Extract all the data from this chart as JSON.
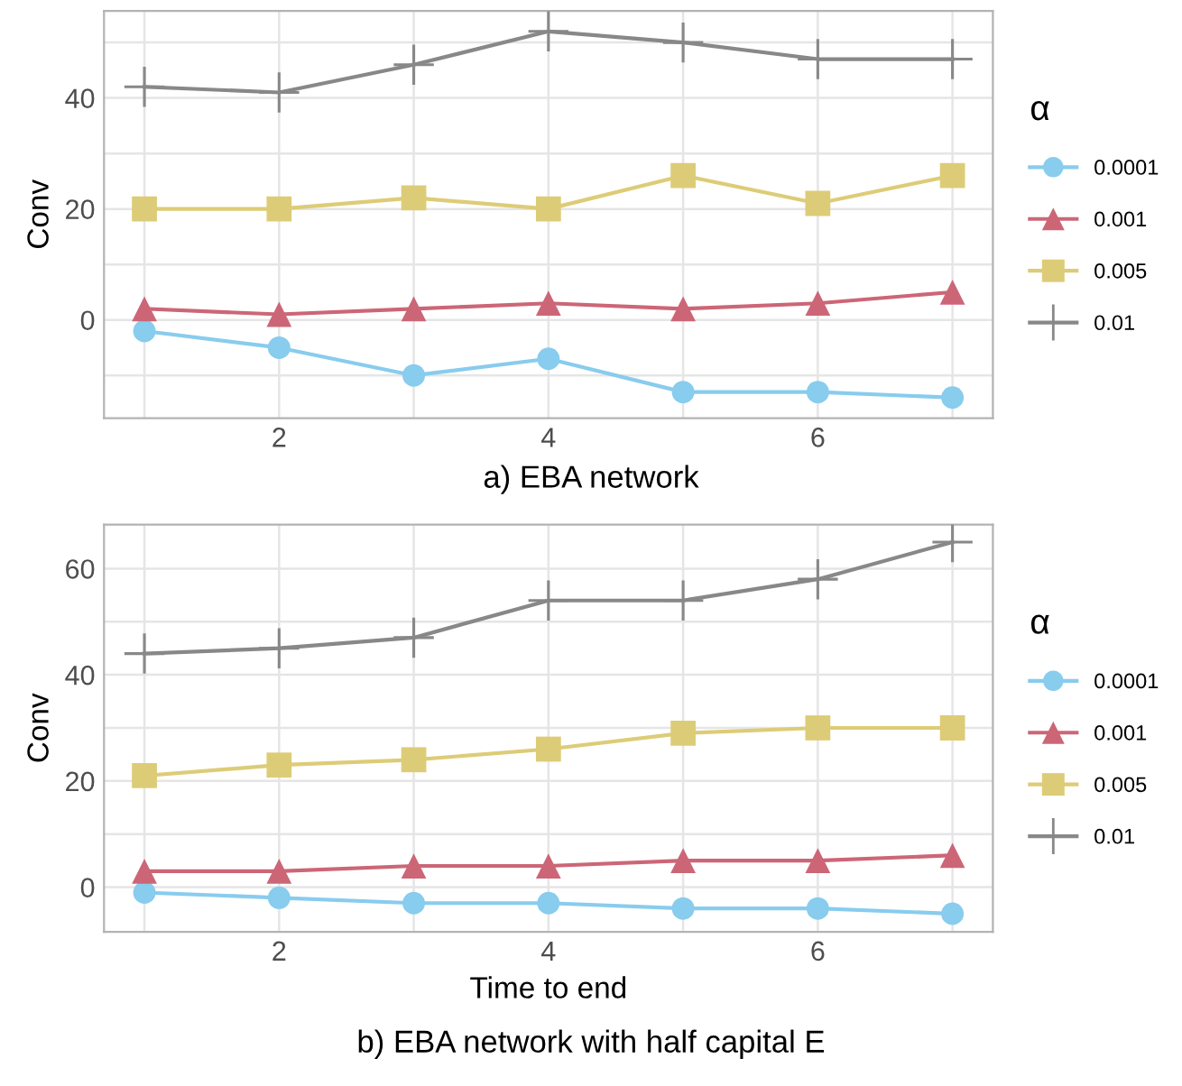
{
  "chart_data": [
    {
      "type": "line",
      "title": "a) EBA network",
      "ylabel": "Conv",
      "legend_title": "α",
      "legend": "right",
      "grid": true,
      "x": [
        1,
        2,
        3,
        4,
        5,
        6,
        7
      ],
      "xlim": [
        0.7,
        7.3
      ],
      "ylim": [
        -17.7,
        55.7
      ],
      "xticks": [
        {
          "value": 1,
          "label": null
        },
        2,
        {
          "value": 3,
          "label": null
        },
        4,
        {
          "value": 5,
          "label": null
        },
        6,
        {
          "value": 7,
          "label": null
        }
      ],
      "yticks": [
        {
          "value": -10,
          "label": null
        },
        0,
        {
          "value": 10,
          "label": null
        },
        20,
        {
          "value": 30,
          "label": null
        },
        40,
        {
          "value": 50,
          "label": null
        }
      ],
      "series": [
        {
          "name": "0.0001",
          "color": "#88ccee",
          "marker": "circle",
          "values": [
            -2,
            -5,
            -10,
            -7,
            -13,
            -13,
            -14
          ]
        },
        {
          "name": "0.001",
          "color": "#cc6677",
          "marker": "triangle",
          "values": [
            2,
            1,
            2,
            3,
            2,
            3,
            5
          ]
        },
        {
          "name": "0.005",
          "color": "#ddcc77",
          "marker": "square",
          "values": [
            20,
            20,
            22,
            20,
            26,
            21,
            26
          ]
        },
        {
          "name": "0.01",
          "color": "#888888",
          "marker": "cross",
          "values": [
            42,
            41,
            46,
            52,
            50,
            47,
            47
          ]
        }
      ]
    },
    {
      "type": "line",
      "title": "b) EBA network with half capital E",
      "xlabel": "Time to end",
      "ylabel": "Conv",
      "legend_title": "α",
      "legend": "right",
      "grid": true,
      "x": [
        1,
        2,
        3,
        4,
        5,
        6,
        7
      ],
      "xlim": [
        0.7,
        7.3
      ],
      "ylim": [
        -8.4,
        68.3
      ],
      "xticks": [
        {
          "value": 1,
          "label": null
        },
        2,
        {
          "value": 3,
          "label": null
        },
        4,
        {
          "value": 5,
          "label": null
        },
        6,
        {
          "value": 7,
          "label": null
        }
      ],
      "yticks": [
        0,
        {
          "value": 10,
          "label": null
        },
        20,
        {
          "value": 30,
          "label": null
        },
        40,
        {
          "value": 50,
          "label": null
        },
        60
      ],
      "series": [
        {
          "name": "0.0001",
          "color": "#88ccee",
          "marker": "circle",
          "values": [
            -1,
            -2,
            -3,
            -3,
            -4,
            -4,
            -5
          ]
        },
        {
          "name": "0.001",
          "color": "#cc6677",
          "marker": "triangle",
          "values": [
            3,
            3,
            4,
            4,
            5,
            5,
            6
          ]
        },
        {
          "name": "0.005",
          "color": "#ddcc77",
          "marker": "square",
          "values": [
            21,
            23,
            24,
            26,
            29,
            30,
            30
          ]
        },
        {
          "name": "0.01",
          "color": "#888888",
          "marker": "cross",
          "values": [
            44,
            45,
            47,
            54,
            54,
            58,
            65
          ]
        }
      ]
    }
  ]
}
